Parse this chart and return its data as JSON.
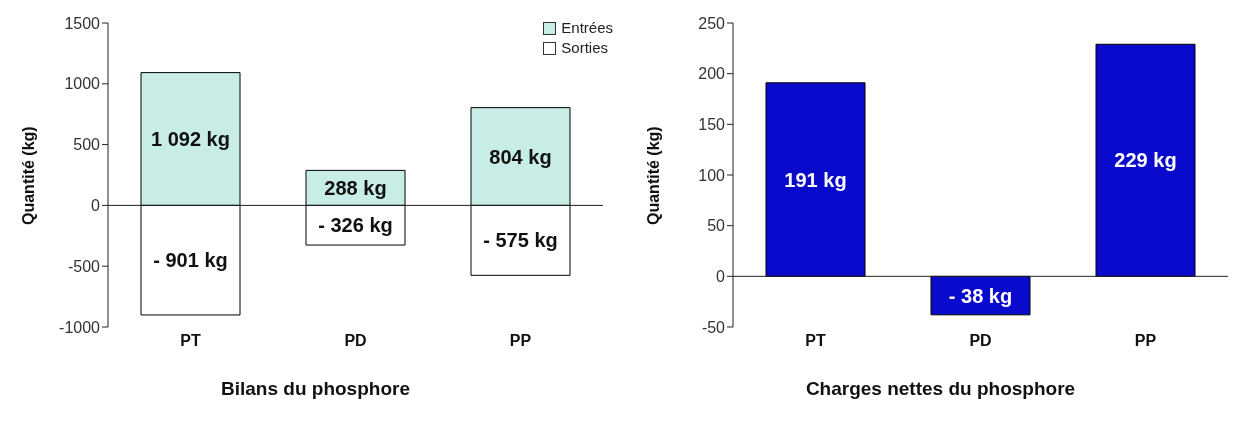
{
  "chart_data": [
    {
      "type": "bar",
      "title": "Bilans du phosphore",
      "ylabel": "Quantité (kg)",
      "categories": [
        "PT",
        "PD",
        "PP"
      ],
      "stacked": true,
      "legend": "top right",
      "grid": false,
      "ref_lines": [
        {
          "axis": "y",
          "value": 0
        }
      ],
      "ylim": [
        -1000,
        1500
      ],
      "yticks": [
        -1000,
        -500,
        0,
        500,
        1000,
        1500
      ],
      "series": [
        {
          "name": "Entrées",
          "color": "#c8ece6",
          "values": [
            1092,
            288,
            804
          ],
          "value_labels": [
            "1 092 kg",
            "288 kg",
            "804 kg"
          ]
        },
        {
          "name": "Sorties",
          "color": "#ffffff",
          "values": [
            -901,
            -326,
            -575
          ],
          "value_labels": [
            "- 901 kg",
            "- 326 kg",
            "- 575 kg"
          ]
        }
      ]
    },
    {
      "type": "bar",
      "title": "Charges nettes du phosphore",
      "ylabel": "Quantité (kg)",
      "categories": [
        "PT",
        "PD",
        "PP"
      ],
      "grid": false,
      "ref_lines": [
        {
          "axis": "y",
          "value": 0
        }
      ],
      "ylim": [
        -50,
        250
      ],
      "yticks": [
        -50,
        0,
        50,
        100,
        150,
        200,
        250
      ],
      "series": [
        {
          "color": "#0a0acc",
          "values": [
            191,
            -38,
            229
          ],
          "value_labels": [
            "191 kg",
            "- 38 kg",
            "229 kg"
          ]
        }
      ]
    }
  ]
}
